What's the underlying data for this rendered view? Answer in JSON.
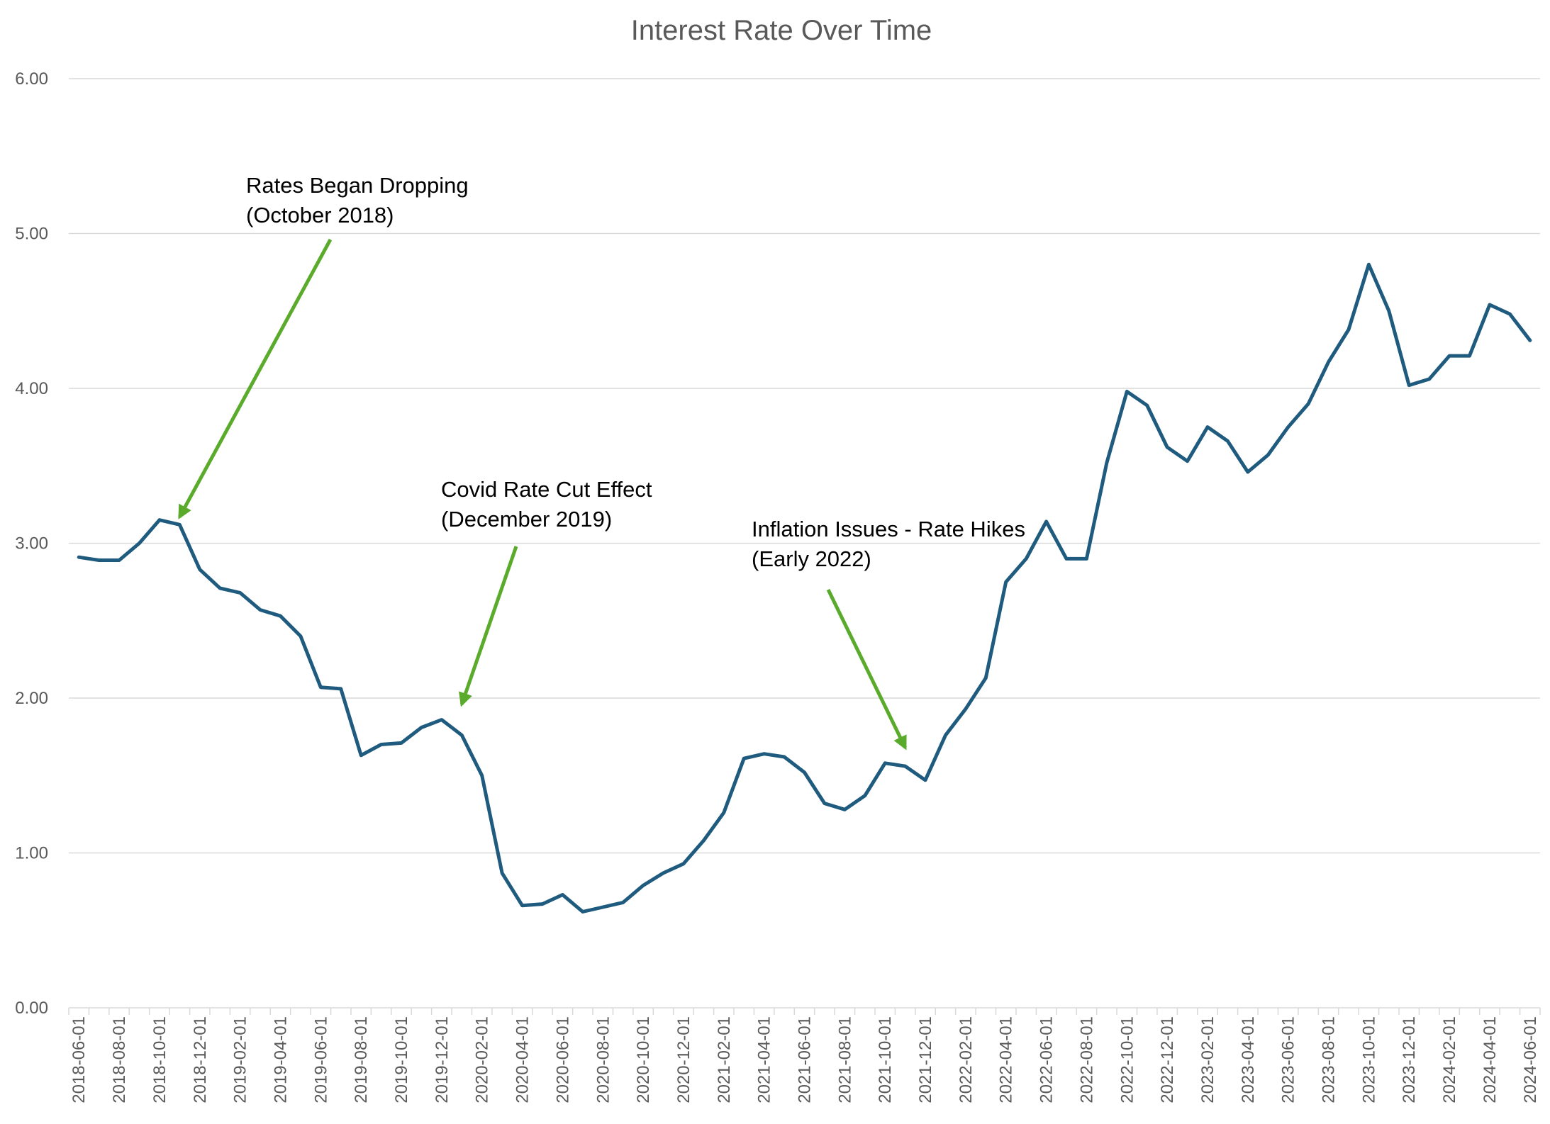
{
  "chart_data": {
    "type": "line",
    "title": "Interest Rate Over Time",
    "xlabel": "",
    "ylabel": "",
    "ylim": [
      0,
      6
    ],
    "yticks": [
      "0.00",
      "1.00",
      "2.00",
      "3.00",
      "4.00",
      "5.00",
      "6.00"
    ],
    "grid": true,
    "legend": "none",
    "x": [
      "2018-06-01",
      "2018-07-01",
      "2018-08-01",
      "2018-09-01",
      "2018-10-01",
      "2018-11-01",
      "2018-12-01",
      "2019-01-01",
      "2019-02-01",
      "2019-03-01",
      "2019-04-01",
      "2019-05-01",
      "2019-06-01",
      "2019-07-01",
      "2019-08-01",
      "2019-09-01",
      "2019-10-01",
      "2019-11-01",
      "2019-12-01",
      "2020-01-01",
      "2020-02-01",
      "2020-03-01",
      "2020-04-01",
      "2020-05-01",
      "2020-06-01",
      "2020-07-01",
      "2020-08-01",
      "2020-09-01",
      "2020-10-01",
      "2020-11-01",
      "2020-12-01",
      "2021-01-01",
      "2021-02-01",
      "2021-03-01",
      "2021-04-01",
      "2021-05-01",
      "2021-06-01",
      "2021-07-01",
      "2021-08-01",
      "2021-09-01",
      "2021-10-01",
      "2021-11-01",
      "2021-12-01",
      "2022-01-01",
      "2022-02-01",
      "2022-03-01",
      "2022-04-01",
      "2022-05-01",
      "2022-06-01",
      "2022-07-01",
      "2022-08-01",
      "2022-09-01",
      "2022-10-01",
      "2022-11-01",
      "2022-12-01",
      "2023-01-01",
      "2023-02-01",
      "2023-03-01",
      "2023-04-01",
      "2023-05-01",
      "2023-06-01",
      "2023-07-01",
      "2023-08-01",
      "2023-09-01",
      "2023-10-01",
      "2023-11-01",
      "2023-12-01",
      "2024-01-01",
      "2024-02-01",
      "2024-03-01",
      "2024-04-01",
      "2024-05-01",
      "2024-06-01"
    ],
    "x_tick_labels": [
      "2018-06-01",
      "2018-08-01",
      "2018-10-01",
      "2018-12-01",
      "2019-02-01",
      "2019-04-01",
      "2019-06-01",
      "2019-08-01",
      "2019-10-01",
      "2019-12-01",
      "2020-02-01",
      "2020-04-01",
      "2020-06-01",
      "2020-08-01",
      "2020-10-01",
      "2020-12-01",
      "2021-02-01",
      "2021-04-01",
      "2021-06-01",
      "2021-08-01",
      "2021-10-01",
      "2021-12-01",
      "2022-02-01",
      "2022-04-01",
      "2022-06-01",
      "2022-08-01",
      "2022-10-01",
      "2022-12-01",
      "2023-02-01",
      "2023-04-01",
      "2023-06-01",
      "2023-08-01",
      "2023-10-01",
      "2023-12-01",
      "2024-02-01",
      "2024-04-01",
      "2024-06-01"
    ],
    "series": [
      {
        "color": "#1f5b7e",
        "values": [
          2.91,
          2.89,
          2.89,
          3.0,
          3.15,
          3.12,
          2.83,
          2.71,
          2.68,
          2.57,
          2.53,
          2.4,
          2.07,
          2.06,
          1.63,
          1.7,
          1.71,
          1.81,
          1.86,
          1.76,
          1.5,
          0.87,
          0.66,
          0.67,
          0.73,
          0.62,
          0.65,
          0.68,
          0.79,
          0.87,
          0.93,
          1.08,
          1.26,
          1.61,
          1.64,
          1.62,
          1.52,
          1.32,
          1.28,
          1.37,
          1.58,
          1.56,
          1.47,
          1.76,
          1.93,
          2.13,
          2.75,
          2.9,
          3.14,
          2.9,
          2.9,
          3.52,
          3.98,
          3.89,
          3.62,
          3.53,
          3.75,
          3.66,
          3.46,
          3.57,
          3.75,
          3.9,
          4.17,
          4.38,
          4.8,
          4.5,
          4.02,
          4.06,
          4.21,
          4.21,
          4.54,
          4.48,
          4.31
        ]
      }
    ],
    "annotations": [
      {
        "text_lines": [
          "Rates Began Dropping",
          "(October 2018)"
        ],
        "arrow_color": "#5aab2c",
        "target_x": "2018-11-01",
        "target_y": 3.17
      },
      {
        "text_lines": [
          "Covid Rate Cut Effect",
          "(December 2019)"
        ],
        "arrow_color": "#5aab2c",
        "target_x": "2020-01-01",
        "target_y": 1.96
      },
      {
        "text_lines": [
          "Inflation Issues - Rate Hikes",
          "(Early 2022)"
        ],
        "arrow_color": "#5aab2c",
        "target_x": "2021-11-01",
        "target_y": 1.68
      }
    ]
  }
}
